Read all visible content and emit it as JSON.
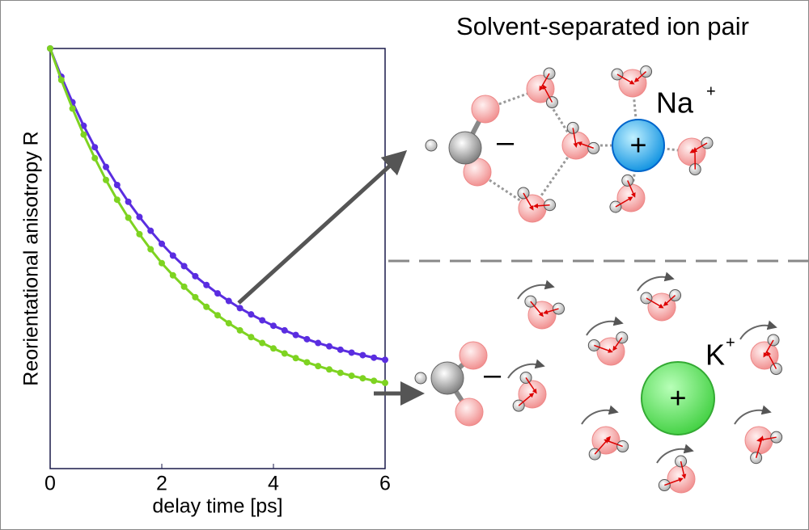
{
  "chart_data": {
    "type": "scatter-fit",
    "xlabel": "delay time [ps]",
    "ylabel": "Reorientational anisotropy R",
    "x": [
      0,
      0.2,
      0.4,
      0.6,
      0.8,
      1,
      1.2,
      1.4,
      1.6,
      1.8,
      2,
      2.2,
      2.4,
      2.6,
      2.8,
      3,
      3.2,
      3.4,
      3.6,
      3.8,
      4,
      4.2,
      4.4,
      4.6,
      4.8,
      5,
      5.2,
      5.4,
      5.6,
      5.8,
      6
    ],
    "series": [
      {
        "color": "#5a2de0",
        "values": [
          1.0,
          0.933,
          0.872,
          0.816,
          0.765,
          0.718,
          0.675,
          0.635,
          0.599,
          0.566,
          0.535,
          0.507,
          0.482,
          0.458,
          0.437,
          0.417,
          0.399,
          0.382,
          0.367,
          0.353,
          0.34,
          0.329,
          0.318,
          0.308,
          0.299,
          0.291,
          0.283,
          0.276,
          0.27,
          0.264,
          0.259
        ]
      },
      {
        "color": "#7ed321",
        "values": [
          1.0,
          0.925,
          0.857,
          0.795,
          0.739,
          0.687,
          0.64,
          0.597,
          0.558,
          0.522,
          0.489,
          0.46,
          0.433,
          0.408,
          0.385,
          0.365,
          0.346,
          0.329,
          0.313,
          0.299,
          0.286,
          0.274,
          0.263,
          0.253,
          0.244,
          0.236,
          0.228,
          0.221,
          0.215,
          0.209,
          0.204
        ]
      }
    ],
    "xlim": [
      0,
      6
    ],
    "xticks": [
      0,
      2,
      4,
      6
    ],
    "ylim": [
      0,
      1
    ]
  },
  "diagram": {
    "title": "Solvent-separated ion pair",
    "top": {
      "anion_charge": "–",
      "cation": "Na",
      "cation_charge": "+",
      "center_charge": "+"
    },
    "bottom": {
      "anion_charge": "–",
      "cation": "K",
      "cation_charge": "+",
      "center_charge": "+"
    }
  }
}
